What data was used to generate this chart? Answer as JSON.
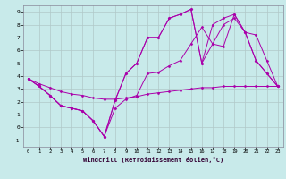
{
  "bg_color": "#c8eaea",
  "grid_color": "#b0c8c8",
  "line_color": "#aa00aa",
  "xlabel": "Windchill (Refroidissement éolien,°C)",
  "xlim": [
    -0.5,
    23.5
  ],
  "ylim": [
    -1.5,
    9.5
  ],
  "xticks": [
    0,
    1,
    2,
    3,
    4,
    5,
    6,
    7,
    8,
    9,
    10,
    11,
    12,
    13,
    14,
    15,
    16,
    17,
    18,
    19,
    20,
    21,
    22,
    23
  ],
  "yticks": [
    -1,
    0,
    1,
    2,
    3,
    4,
    5,
    6,
    7,
    8,
    9
  ],
  "series": [
    [
      3.8,
      3.2,
      2.5,
      1.7,
      1.5,
      1.3,
      0.5,
      -0.7,
      2.1,
      4.2,
      5.0,
      7.0,
      7.0,
      8.5,
      8.8,
      9.2,
      5.0,
      6.5,
      6.3,
      8.8,
      7.4,
      5.2,
      4.2,
      3.2
    ],
    [
      3.8,
      3.2,
      2.5,
      1.7,
      1.5,
      1.3,
      0.5,
      -0.7,
      1.5,
      2.2,
      2.5,
      4.2,
      4.3,
      4.8,
      5.2,
      6.5,
      7.8,
      6.5,
      8.0,
      8.5,
      7.4,
      5.2,
      4.2,
      3.2
    ],
    [
      3.8,
      3.4,
      3.1,
      2.8,
      2.6,
      2.5,
      2.3,
      2.2,
      2.2,
      2.3,
      2.4,
      2.6,
      2.7,
      2.8,
      2.9,
      3.0,
      3.1,
      3.1,
      3.2,
      3.2,
      3.2,
      3.2,
      3.2,
      3.2
    ],
    [
      3.8,
      3.2,
      2.5,
      1.7,
      1.5,
      1.3,
      0.5,
      -0.7,
      2.1,
      4.2,
      5.0,
      7.0,
      7.0,
      8.5,
      8.8,
      9.2,
      5.0,
      8.0,
      8.5,
      8.8,
      7.4,
      7.2,
      5.2,
      3.2
    ]
  ]
}
